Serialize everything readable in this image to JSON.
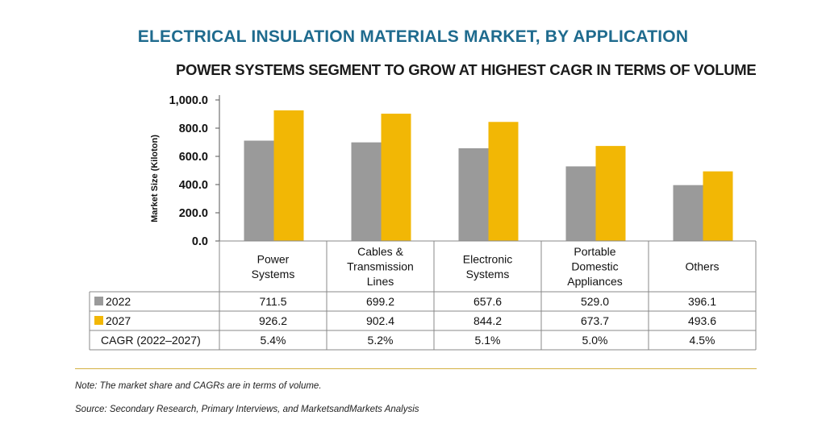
{
  "title": "ELECTRICAL INSULATION MATERIALS MARKET, BY APPLICATION",
  "subtitle": "POWER SYSTEMS SEGMENT TO GROW AT HIGHEST CAGR IN TERMS OF VOLUME",
  "note": "Note: The market share and CAGRs are in terms of volume.",
  "source": "Source: Secondary Research, Primary Interviews, and MarketsandMarkets Analysis",
  "colors": {
    "title": "#1f6b8e",
    "series_2022": "#9a9a9a",
    "series_2027": "#f2b705",
    "rule": "#d4b042"
  },
  "chart_data": {
    "type": "bar",
    "ylabel": "Market Size (Kiloton)",
    "ylim": [
      0,
      1000
    ],
    "yticks": [
      "0.0",
      "200.0",
      "400.0",
      "600.0",
      "800.0",
      "1,000.0"
    ],
    "categories": [
      [
        "Power",
        "Systems"
      ],
      [
        "Cables &",
        "Transmission",
        "Lines"
      ],
      [
        "Electronic",
        "Systems"
      ],
      [
        "Portable",
        "Domestic",
        "Appliances"
      ],
      [
        "Others"
      ]
    ],
    "series": [
      {
        "name": "2022",
        "values": [
          711.5,
          699.2,
          657.6,
          529.0,
          396.1
        ],
        "labels": [
          "711.5",
          "699.2",
          "657.6",
          "529.0",
          "396.1"
        ]
      },
      {
        "name": "2027",
        "values": [
          926.2,
          902.4,
          844.2,
          673.7,
          493.6
        ],
        "labels": [
          "926.2",
          "902.4",
          "844.2",
          "673.7",
          "493.6"
        ]
      }
    ],
    "table_rows": [
      {
        "label": "CAGR (2022–2027)",
        "values": [
          "5.4%",
          "5.2%",
          "5.1%",
          "5.0%",
          "4.5%"
        ]
      }
    ],
    "grid": false,
    "legend": "table-left"
  }
}
